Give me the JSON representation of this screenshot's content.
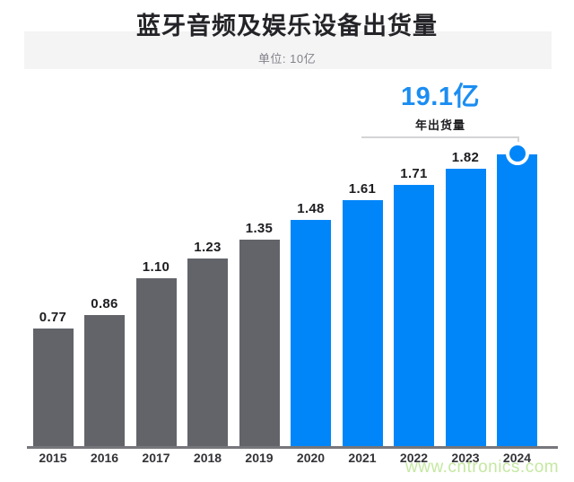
{
  "header": {
    "title": "蓝牙音频及娱乐设备出货量",
    "subtitle": "单位: 10亿"
  },
  "callout": {
    "value": "19.1亿",
    "label": "年出货量"
  },
  "watermark": "www.cntronics.com",
  "colors": {
    "bar_gray": "#62646a",
    "bar_blue": "#0086f9",
    "callout_blue": "#1b8df2",
    "axis_line": "#76767c",
    "connector_gray": "#d4d4d6",
    "header_band_bg": "#f4f4f5",
    "watermark_green": "#c5e8a2"
  },
  "chart_data": {
    "type": "bar",
    "title": "蓝牙音频及娱乐设备出货量",
    "unit": "10亿",
    "categories": [
      "2015",
      "2016",
      "2017",
      "2018",
      "2019",
      "2020",
      "2021",
      "2022",
      "2023",
      "2024"
    ],
    "values": [
      0.77,
      0.86,
      1.1,
      1.23,
      1.35,
      1.48,
      1.61,
      1.71,
      1.82,
      1.91
    ],
    "bar_labels": [
      "0.77",
      "0.86",
      "1.10",
      "1.23",
      "1.35",
      "1.48",
      "1.61",
      "1.71",
      "1.82",
      ""
    ],
    "highlight_start_index": 5,
    "marker_index": 9,
    "annotation": {
      "text": "19.1亿",
      "sub": "年出货量",
      "points_to": "2024"
    },
    "ylim": [
      0,
      2.0
    ],
    "xlabel": "",
    "ylabel": "",
    "legend": false,
    "grid": false
  }
}
